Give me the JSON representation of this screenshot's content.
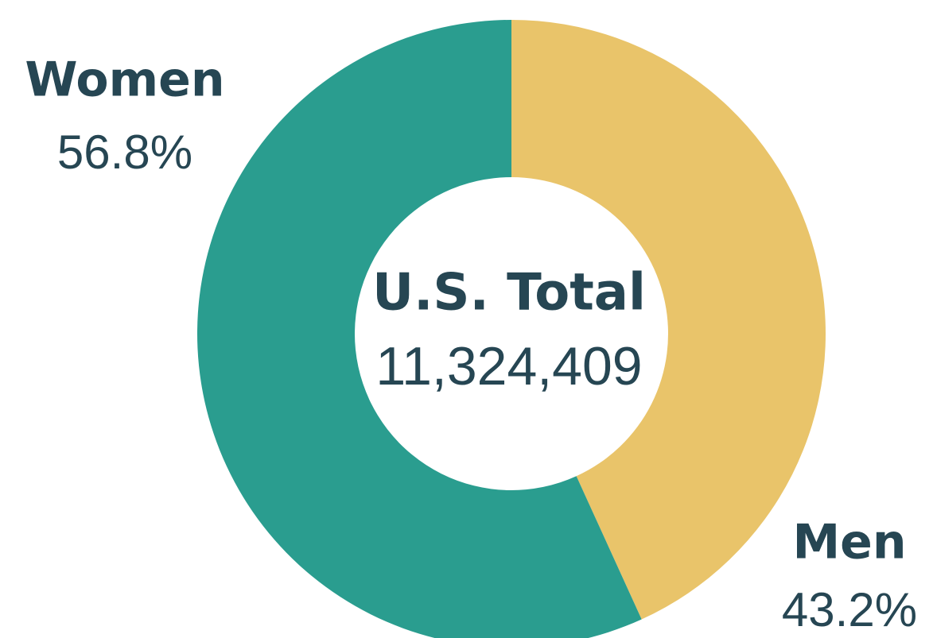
{
  "chart_data": {
    "type": "pie",
    "donut": true,
    "categories": [
      "Men",
      "Women"
    ],
    "values": [
      43.2,
      56.8
    ],
    "value_labels": [
      "43.2%",
      "56.8%"
    ],
    "colors": [
      "#e9c46a",
      "#2a9d8f"
    ],
    "center": {
      "title": "U.S. Total",
      "value": 11324409,
      "label": "11,324,409"
    }
  }
}
